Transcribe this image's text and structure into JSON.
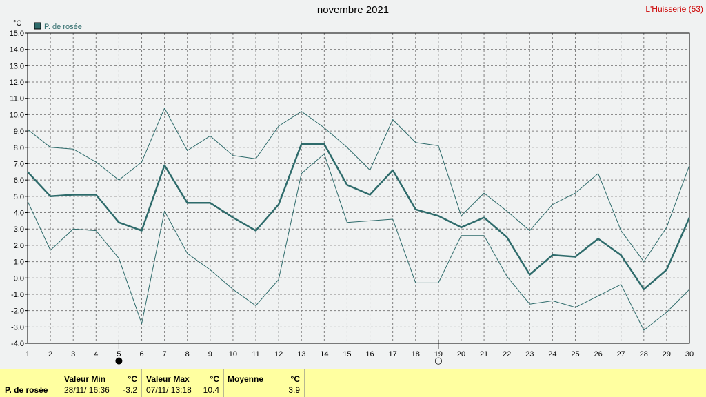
{
  "title": "novembre 2021",
  "station": "L'Huisserie (53)",
  "chart_data": {
    "type": "line",
    "unit_label": "°C",
    "legend": "P. de rosée",
    "x": [
      1,
      2,
      3,
      4,
      5,
      6,
      7,
      8,
      9,
      10,
      11,
      12,
      13,
      14,
      15,
      16,
      17,
      18,
      19,
      20,
      21,
      22,
      23,
      24,
      25,
      26,
      27,
      28,
      29,
      30
    ],
    "ylim": [
      -4.0,
      15.0
    ],
    "yticks": [
      "15.0",
      "14.0",
      "13.0",
      "12.0",
      "11.0",
      "10.0",
      "9.0",
      "8.0",
      "7.0",
      "6.0",
      "5.0",
      "4.0",
      "3.0",
      "2.0",
      "1.0",
      "0.0",
      "-1.0",
      "-2.0",
      "-3.0",
      "-4.0"
    ],
    "grid": true,
    "series": [
      {
        "role": "mean",
        "values": [
          6.5,
          5.0,
          5.1,
          5.1,
          3.4,
          2.9,
          6.9,
          4.6,
          4.6,
          3.7,
          2.9,
          4.5,
          8.2,
          8.2,
          5.7,
          5.1,
          6.6,
          4.2,
          3.8,
          3.1,
          3.7,
          2.5,
          0.2,
          1.4,
          1.3,
          2.4,
          1.4,
          -0.7,
          0.5,
          3.7
        ]
      },
      {
        "role": "max",
        "values": [
          9.1,
          8.0,
          7.9,
          7.1,
          6.0,
          7.1,
          10.4,
          7.8,
          8.7,
          7.5,
          7.3,
          9.3,
          10.2,
          9.2,
          8.0,
          6.6,
          9.7,
          8.3,
          8.1,
          3.8,
          5.2,
          4.1,
          2.9,
          4.5,
          5.2,
          6.4,
          2.9,
          1.0,
          3.1,
          6.9
        ]
      },
      {
        "role": "min",
        "values": [
          4.7,
          1.7,
          3.0,
          2.9,
          1.2,
          -2.8,
          4.1,
          1.5,
          0.5,
          -0.7,
          -1.7,
          -0.1,
          6.4,
          7.6,
          3.4,
          3.5,
          3.6,
          -0.3,
          -0.3,
          2.6,
          2.6,
          0.1,
          -1.6,
          -1.4,
          -1.8,
          -1.1,
          -0.4,
          -3.2,
          -2.1,
          -0.7
        ]
      }
    ],
    "moon_phases": [
      {
        "day": 5,
        "symbol": "●",
        "name": "new-moon-icon"
      },
      {
        "day": 19,
        "symbol": "○",
        "name": "full-moon-icon"
      }
    ],
    "colors": {
      "line": "#2e6b6b",
      "grid": "#7f7f7f",
      "plot_bg": "#f0f2f2"
    }
  },
  "footer": {
    "row_label": "P. de rosée",
    "min": {
      "header": "Valeur Min",
      "unit": "°C",
      "date": "28/11/ 16:36",
      "value": "-3.2"
    },
    "max": {
      "header": "Valeur Max",
      "unit": "°C",
      "date": "07/11/ 13:18",
      "value": "10.4"
    },
    "avg": {
      "header": "Moyenne",
      "unit": "°C",
      "value": "3.9"
    }
  }
}
